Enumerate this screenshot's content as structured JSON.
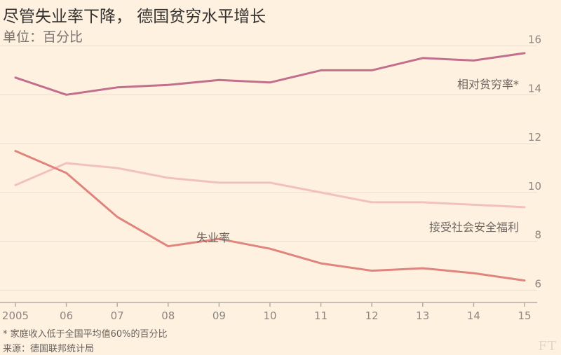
{
  "title": "尽管失业率下降， 德国贫穷水平增长",
  "subtitle": "单位：百分比",
  "footnote": "* 家庭收入低于全国平均值60%的百分比",
  "source": "来源：德国联邦统计局",
  "logo": "FT",
  "colors": {
    "background": "#fff1e0",
    "grid": "#e9decf",
    "axis": "#b5aca3",
    "tick_text": "#8d8680",
    "poverty": "#c26f8d",
    "welfare": "#f2c1bd",
    "unemployment": "#e0847e"
  },
  "chart_data": {
    "type": "line",
    "x": [
      "2005",
      "06",
      "07",
      "08",
      "09",
      "10",
      "11",
      "12",
      "13",
      "14",
      "15"
    ],
    "ylim": [
      5.5,
      16.5
    ],
    "yticks": [
      6,
      8,
      10,
      12,
      14,
      16
    ],
    "y_axis_side": "right",
    "grid": true,
    "series": [
      {
        "name": "相对贫穷率*",
        "color": "#c26f8d",
        "values": [
          14.7,
          14.0,
          14.3,
          14.4,
          14.6,
          14.5,
          15.0,
          15.0,
          15.5,
          15.4,
          15.7
        ]
      },
      {
        "name": "接受社会安全福利",
        "color": "#f2c1bd",
        "values": [
          10.3,
          11.2,
          11.0,
          10.6,
          10.4,
          10.4,
          10.0,
          9.6,
          9.6,
          9.5,
          9.4
        ]
      },
      {
        "name": "失业率",
        "color": "#e0847e",
        "values": [
          11.7,
          10.8,
          9.0,
          7.8,
          8.1,
          7.7,
          7.1,
          6.8,
          6.9,
          6.7,
          6.4
        ]
      }
    ]
  }
}
